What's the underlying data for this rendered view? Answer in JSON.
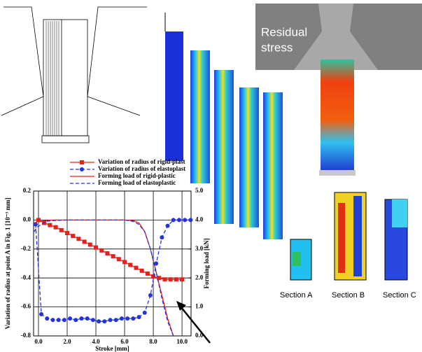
{
  "chart_data": {
    "type": "line",
    "xlabel": "Stroke [mm]",
    "ylabel": "Variation of radius at point A in Fig. 1 [10⁻³ mm]",
    "y2label": "Forming load [kN]",
    "xlim": [
      -0.34,
      10.63
    ],
    "xticks": [
      {
        "value": 0,
        "label": "0.0"
      },
      {
        "value": 2,
        "label": "2.0"
      },
      {
        "value": 4,
        "label": "4.0"
      },
      {
        "value": 6,
        "label": "6.0"
      },
      {
        "value": 8,
        "label": "8.0"
      },
      {
        "value": 10,
        "label": "10.0"
      }
    ],
    "ylim": [
      -0.8,
      0.2
    ],
    "yticks": [
      {
        "value": -0.8,
        "label": "-0.8"
      },
      {
        "value": -0.6,
        "label": "-0.6"
      },
      {
        "value": -0.4,
        "label": "-0.4"
      },
      {
        "value": -0.2,
        "label": "-0.2"
      },
      {
        "value": 0,
        "label": "0.0"
      },
      0.2
    ],
    "y2lim": [
      0,
      5
    ],
    "y2ticks": [
      {
        "value": 0,
        "label": "0.0"
      },
      {
        "value": 1,
        "label": "1.0"
      },
      {
        "value": 2,
        "label": "2.0"
      },
      {
        "value": 3,
        "label": "3.0"
      },
      {
        "value": 4,
        "label": "4.0"
      },
      {
        "value": 5,
        "label": "5.0"
      }
    ],
    "grid": true,
    "series": [
      {
        "name": "Variation of radius of rigid-plast",
        "color": "#e8201c",
        "marker": "square",
        "dash": false,
        "x": [
          0,
          0.4,
          0.8,
          1.2,
          1.6,
          2.0,
          2.4,
          2.8,
          3.2,
          3.6,
          4.0,
          4.4,
          4.8,
          5.2,
          5.6,
          6.0,
          6.4,
          6.8,
          7.2,
          7.6,
          8.0,
          8.4,
          8.8,
          9.2,
          9.6,
          10.0
        ],
        "values": [
          0,
          -0.02,
          -0.035,
          -0.05,
          -0.07,
          -0.09,
          -0.11,
          -0.13,
          -0.15,
          -0.17,
          -0.19,
          -0.21,
          -0.23,
          -0.25,
          -0.27,
          -0.29,
          -0.31,
          -0.33,
          -0.35,
          -0.37,
          -0.39,
          -0.4,
          -0.41,
          -0.41,
          -0.41,
          -0.41
        ]
      },
      {
        "name": "Variation of radius of elastoplast",
        "color": "#2233dd",
        "marker": "circle",
        "dash": true,
        "x": [
          -0.2,
          0.2,
          0.6,
          1.0,
          1.4,
          1.8,
          2.2,
          2.6,
          3.0,
          3.4,
          3.8,
          4.2,
          4.6,
          5.0,
          5.4,
          5.8,
          6.2,
          6.6,
          7.0,
          7.4,
          7.8,
          8.2,
          8.6,
          9.0,
          9.4,
          9.8,
          10.2,
          10.6
        ],
        "values": [
          -0.03,
          -0.65,
          -0.68,
          -0.69,
          -0.69,
          -0.69,
          -0.68,
          -0.69,
          -0.68,
          -0.68,
          -0.69,
          -0.7,
          -0.7,
          -0.69,
          -0.69,
          -0.68,
          -0.68,
          -0.68,
          -0.67,
          -0.64,
          -0.52,
          -0.3,
          -0.12,
          -0.04,
          0,
          0,
          0,
          0
        ]
      },
      {
        "name": "Forming load of rigid-plastic",
        "color": "#e8201c",
        "marker": "none",
        "dash": false,
        "axis": "y2",
        "x": [
          -0.3,
          0,
          0.5,
          1,
          2,
          4,
          6,
          6.6,
          7.0,
          7.4,
          7.8,
          8.2,
          8.6,
          9.0,
          9.4
        ],
        "values": [
          3.9,
          3.95,
          3.98,
          4.0,
          4.0,
          4.0,
          4.0,
          3.98,
          3.9,
          3.6,
          3.0,
          2.2,
          1.4,
          0.6,
          0
        ]
      },
      {
        "name": "Forming load of elastoplastic",
        "color": "#2233dd",
        "marker": "none",
        "dash": true,
        "axis": "y2",
        "x": [
          -0.3,
          -0.1,
          0.2,
          0.5,
          1,
          2,
          4,
          6,
          6.6,
          7.0,
          7.4,
          7.8,
          8.2,
          8.6,
          9.0,
          9.4
        ],
        "values": [
          3.6,
          3.75,
          3.85,
          3.95,
          3.98,
          4.0,
          4.0,
          4.0,
          3.95,
          3.85,
          3.6,
          3.0,
          2.2,
          1.3,
          0.5,
          0
        ]
      }
    ]
  },
  "figures": {
    "residual": [
      "Residual",
      "stress"
    ],
    "sections": [
      "Section A",
      "Section B",
      "Section C"
    ]
  }
}
